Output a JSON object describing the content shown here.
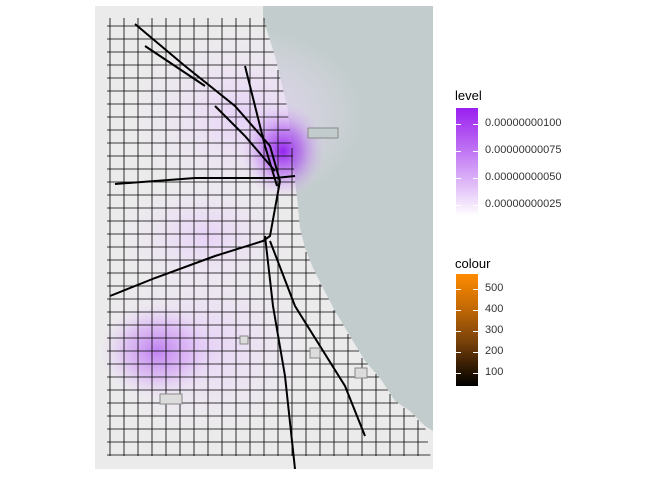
{
  "map": {
    "colors": {
      "land": "#ebebeb",
      "water": "#c2cccc",
      "road": "#000000",
      "density_high": "#9a1ff0",
      "density_low": "#ffffff"
    }
  },
  "legends": {
    "level": {
      "title": "level",
      "ticks": [
        {
          "label": "0.00000000100",
          "value": 1e-09
        },
        {
          "label": "0.00000000075",
          "value": 7.5e-10
        },
        {
          "label": "0.00000000050",
          "value": 5e-10
        },
        {
          "label": "0.00000000025",
          "value": 2.5e-10
        }
      ],
      "range": [
        1.5e-10,
        1.15e-09
      ]
    },
    "colour": {
      "title": "colour",
      "ticks": [
        {
          "label": "500",
          "value": 500
        },
        {
          "label": "400",
          "value": 400
        },
        {
          "label": "300",
          "value": 300
        },
        {
          "label": "200",
          "value": 200
        },
        {
          "label": "100",
          "value": 100
        }
      ],
      "range": [
        40,
        570
      ]
    }
  }
}
